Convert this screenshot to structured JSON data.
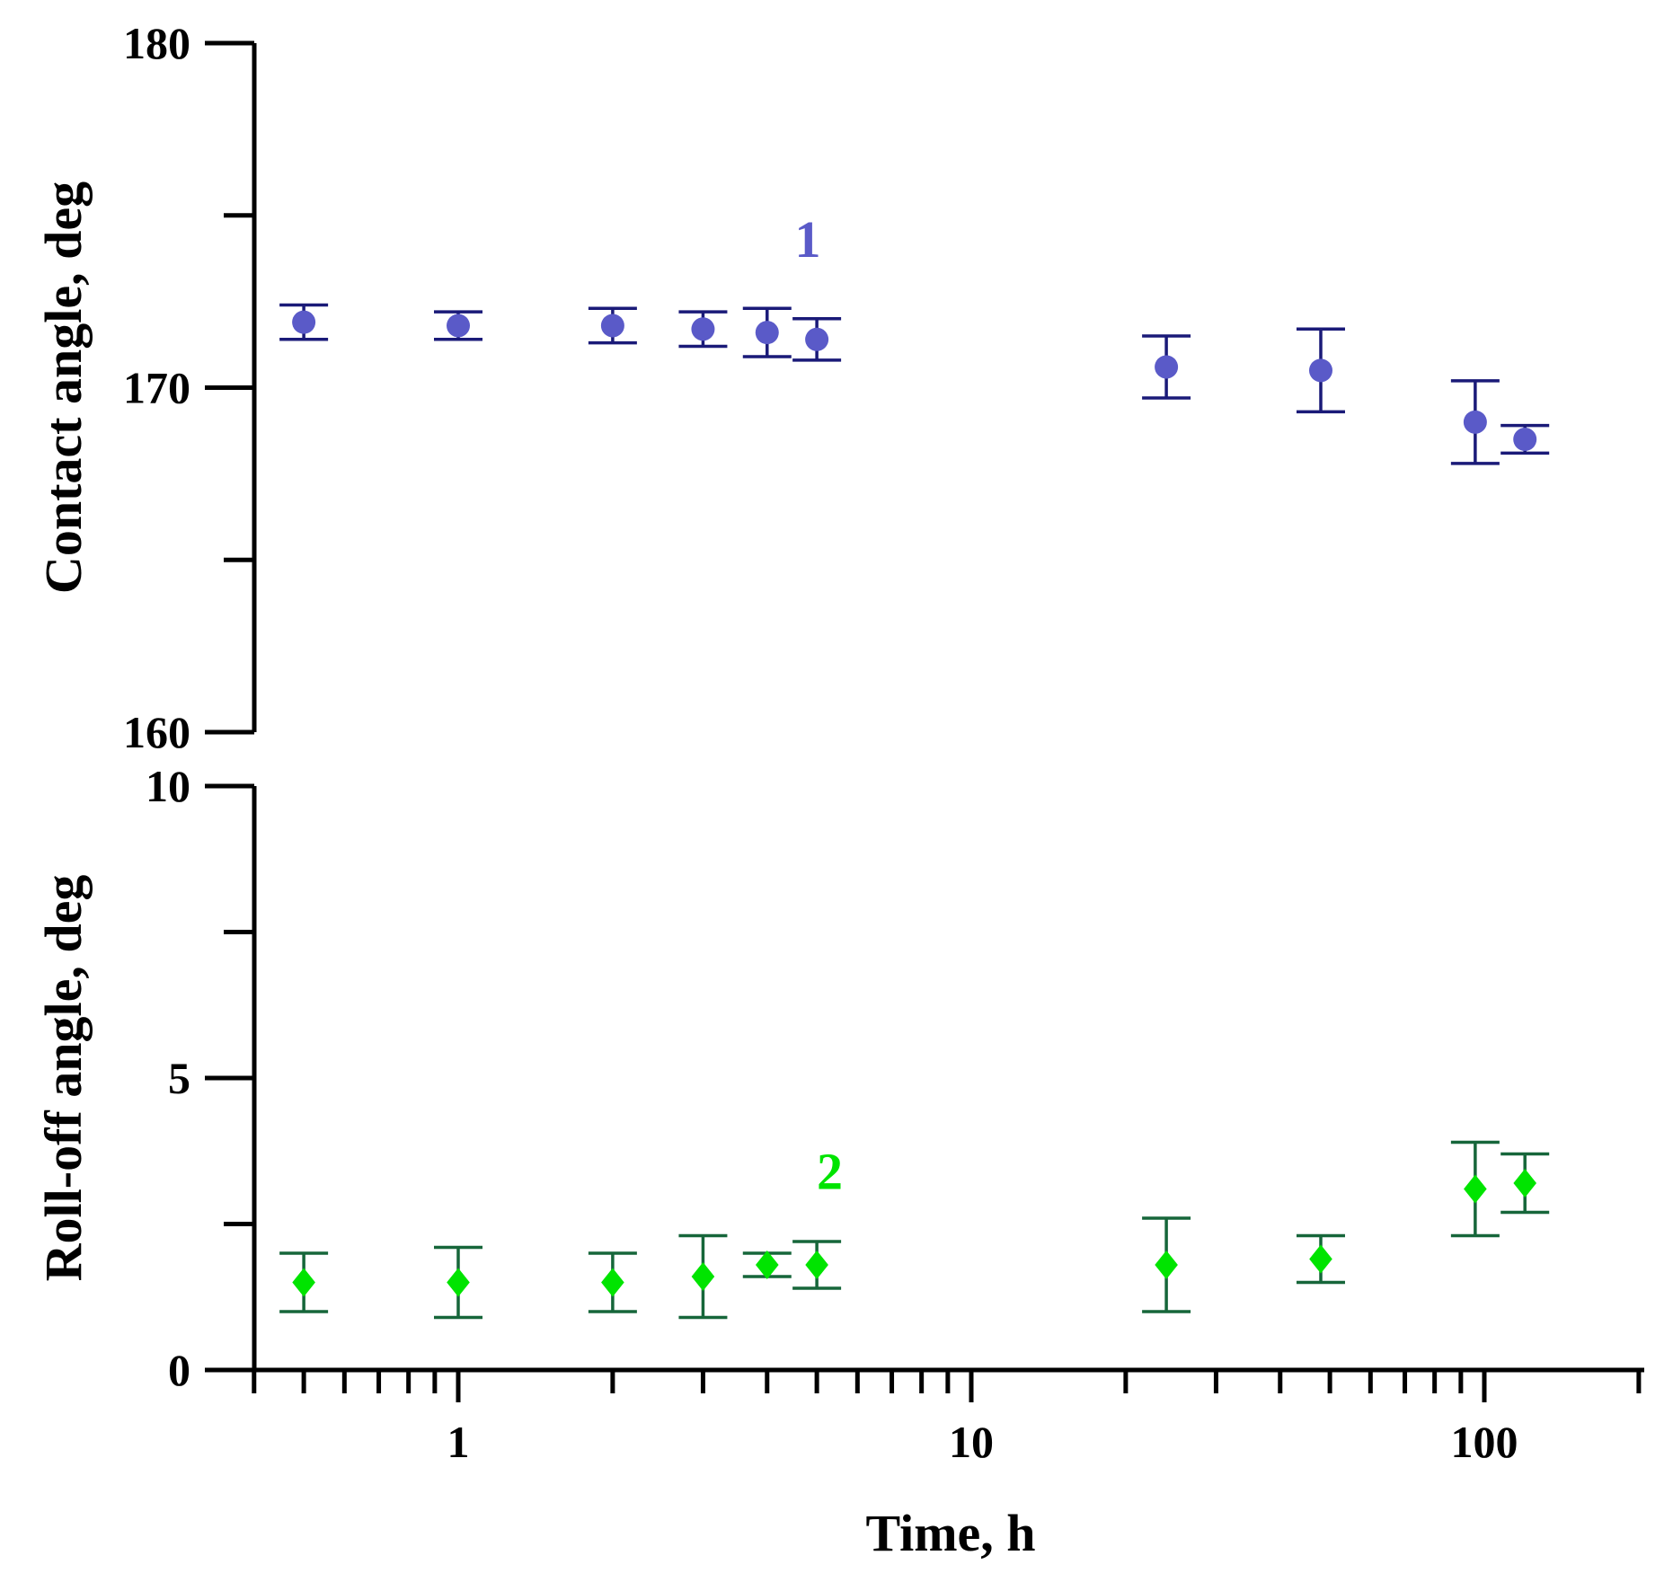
{
  "chart_data": {
    "type": "scatter",
    "x_scale": "log",
    "xlabel": "Time, h",
    "xlim": [
      0.4,
      200
    ],
    "x_major_ticks": [
      1,
      10,
      100
    ],
    "x_major_tick_labels": [
      "1",
      "10",
      "100"
    ],
    "x_minor_ticks": [
      0.4,
      0.5,
      0.6,
      0.7,
      0.8,
      0.9,
      2,
      3,
      4,
      5,
      6,
      7,
      8,
      9,
      20,
      30,
      40,
      50,
      60,
      70,
      80,
      90,
      200
    ],
    "panels": [
      {
        "id": "contact",
        "ylabel": "Contact angle, deg",
        "ylim": [
          160,
          180
        ],
        "y_major_ticks": [
          160,
          170,
          180
        ],
        "y_major_tick_labels": [
          "160",
          "170",
          "180"
        ],
        "y_minor_ticks": [
          165,
          175
        ],
        "series": [
          {
            "name": "1",
            "label": "1",
            "label_at": [
              4.8,
              173.8
            ],
            "marker": "circle",
            "marker_color": "#5a5ac8",
            "errorbar_color": "#1a1a78",
            "points": [
              {
                "x": 0.5,
                "y": 171.9,
                "err": 0.5
              },
              {
                "x": 1,
                "y": 171.8,
                "err": 0.4
              },
              {
                "x": 2,
                "y": 171.8,
                "err": 0.5
              },
              {
                "x": 3,
                "y": 171.7,
                "err": 0.5
              },
              {
                "x": 4,
                "y": 171.6,
                "err": 0.7
              },
              {
                "x": 5,
                "y": 171.4,
                "err": 0.6
              },
              {
                "x": 24,
                "y": 170.6,
                "err": 0.9
              },
              {
                "x": 48,
                "y": 170.5,
                "err": 1.2
              },
              {
                "x": 96,
                "y": 169.0,
                "err": 1.2
              },
              {
                "x": 120,
                "y": 168.5,
                "err": 0.4
              }
            ]
          }
        ]
      },
      {
        "id": "rolloff",
        "ylabel": "Roll-off angle, deg",
        "ylim": [
          0,
          10
        ],
        "y_major_ticks": [
          0,
          5,
          10
        ],
        "y_major_tick_labels": [
          "0",
          "5",
          "10"
        ],
        "y_minor_ticks": [
          2.5,
          7.5
        ],
        "series": [
          {
            "name": "2",
            "label": "2",
            "label_at": [
              5.3,
              3.1
            ],
            "marker": "diamond",
            "marker_color": "#00e400",
            "errorbar_color": "#16663a",
            "points": [
              {
                "x": 0.5,
                "y": 1.5,
                "err": 0.5
              },
              {
                "x": 1,
                "y": 1.5,
                "err": 0.6
              },
              {
                "x": 2,
                "y": 1.5,
                "err": 0.5
              },
              {
                "x": 3,
                "y": 1.6,
                "err": 0.7
              },
              {
                "x": 4,
                "y": 1.8,
                "err": 0.2
              },
              {
                "x": 5,
                "y": 1.8,
                "err": 0.4
              },
              {
                "x": 24,
                "y": 1.8,
                "err": 0.8
              },
              {
                "x": 48,
                "y": 1.9,
                "err": 0.4
              },
              {
                "x": 96,
                "y": 3.1,
                "err": 0.8
              },
              {
                "x": 120,
                "y": 3.2,
                "err": 0.5
              }
            ]
          }
        ]
      }
    ]
  }
}
